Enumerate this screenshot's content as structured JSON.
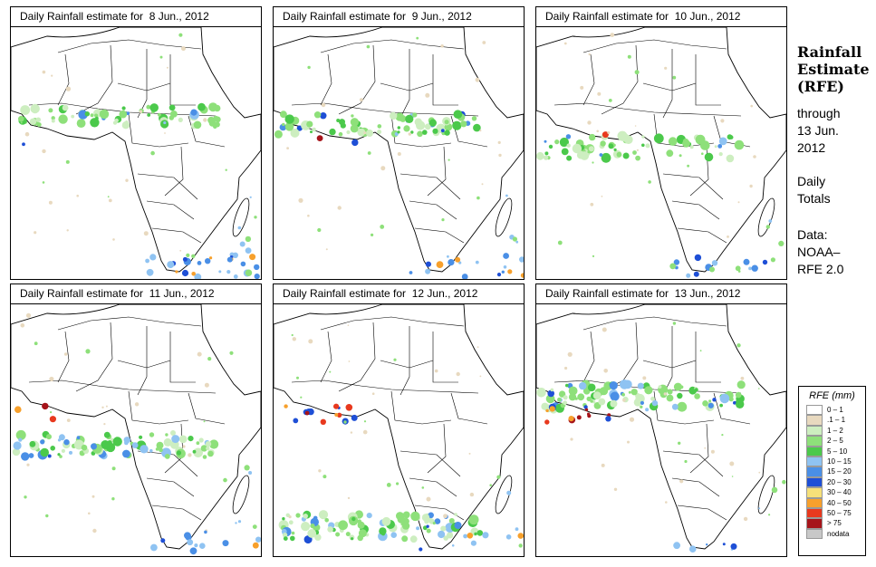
{
  "panels": [
    {
      "title": "Daily Rainfall estimate for  8 Jun., 2012",
      "pattern": [
        0.4,
        0.15,
        0.05,
        0.6,
        0.85
      ]
    },
    {
      "title": "Daily Rainfall estimate for  9 Jun., 2012",
      "pattern": [
        0.45,
        0.2,
        0.1,
        0.3,
        0.55
      ]
    },
    {
      "title": "Daily Rainfall estimate for  10 Jun., 2012",
      "pattern": [
        0.4,
        0.35,
        0.05,
        0.25,
        0.5
      ]
    },
    {
      "title": "Daily Rainfall estimate for  11 Jun., 2012",
      "pattern": [
        0.7,
        0.5,
        0.15,
        0.35,
        0.4
      ]
    },
    {
      "title": "Daily Rainfall estimate for  12 Jun., 2012",
      "pattern": [
        0.8,
        0.55,
        0.85,
        0.3,
        0.25
      ]
    },
    {
      "title": "Daily Rainfall estimate for  13 Jun., 2012",
      "pattern": [
        0.75,
        0.6,
        0.7,
        0.25,
        0.2
      ]
    }
  ],
  "sidebar": {
    "heading_line1": "Rainfall",
    "heading_line2": "Estimate",
    "heading_line3": "(RFE)",
    "through_line1": "through",
    "through_line2": "13 Jun.",
    "through_line3": "2012",
    "daily_line1": "Daily",
    "daily_line2": "Totals",
    "data_line1": "Data:",
    "data_line2": "NOAA–",
    "data_line3": "RFE 2.0"
  },
  "legend": {
    "title": "RFE (mm)",
    "items": [
      {
        "label": "0 – 1",
        "color": "#ffffff"
      },
      {
        "label": ".1 – 1",
        "color": "#e8d9bf"
      },
      {
        "label": "1 – 2",
        "color": "#cdeec0"
      },
      {
        "label": "2 – 5",
        "color": "#8ee07a"
      },
      {
        "label": "5 – 10",
        "color": "#4bc94b"
      },
      {
        "label": "10 – 15",
        "color": "#8fc3f2"
      },
      {
        "label": "15 – 20",
        "color": "#4a8fe6"
      },
      {
        "label": "20 – 30",
        "color": "#1e4fd6"
      },
      {
        "label": "30 – 40",
        "color": "#f6e079"
      },
      {
        "label": "40 – 50",
        "color": "#f7a02c"
      },
      {
        "label": "50 – 75",
        "color": "#e8391e"
      },
      {
        "label": "> 75",
        "color": "#a6141a"
      },
      {
        "label": "nodata",
        "color": "#c8c8c8"
      }
    ]
  }
}
